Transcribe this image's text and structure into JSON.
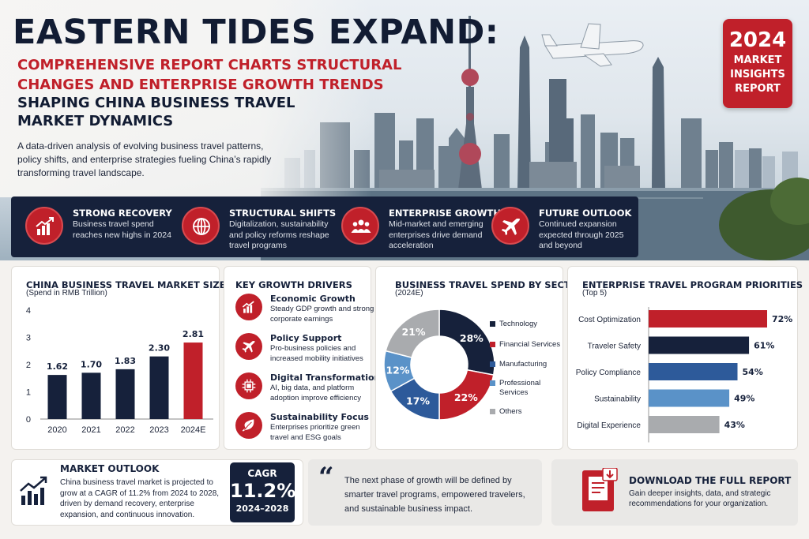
{
  "hero": {
    "title": "EASTERN TIDES EXPAND:",
    "subtitle": "COMPREHENSIVE REPORT CHARTS STRUCTURAL CHANGES AND ENTERPRISE GROWTH TRENDS",
    "subtitle2": "SHAPING CHINA BUSINESS TRAVEL MARKET DYNAMICS",
    "intro": "A data-driven analysis of evolving business travel patterns, policy shifts, and enterprise strategies fueling China’s rapidly transforming travel landscape.",
    "badge": {
      "year": "2024",
      "line1": "MARKET",
      "line2": "INSIGHTS",
      "line3": "REPORT"
    }
  },
  "highlights": [
    {
      "icon": "growth-chart-icon",
      "title": "STRONG RECOVERY",
      "text": "Business travel spend reaches new highs in 2024"
    },
    {
      "icon": "globe-icon",
      "title": "STRUCTURAL SHIFTS",
      "text": "Digitalization, sustainability and policy reforms reshape travel programs"
    },
    {
      "icon": "people-icon",
      "title": "ENTERPRISE GROWTH",
      "text": "Mid-market and emerging enterprises drive demand acceleration"
    },
    {
      "icon": "airplane-icon",
      "title": "FUTURE OUTLOOK",
      "text": "Continued expansion expected through 2025 and beyond"
    }
  ],
  "drivers": {
    "title": "KEY GROWTH DRIVERS",
    "items": [
      {
        "icon": "growth-chart-icon",
        "title": "Economic Growth",
        "text": "Steady GDP growth and strong corporate earnings"
      },
      {
        "icon": "airplane-icon",
        "title": "Policy Support",
        "text": "Pro-business policies and increased mobility initiatives"
      },
      {
        "icon": "chip-icon",
        "title": "Digital Transformation",
        "text": "AI, big data, and platform adoption improve efficiency"
      },
      {
        "icon": "leaf-icon",
        "title": "Sustainability Focus",
        "text": "Enterprises prioritize green travel and ESG goals"
      }
    ]
  },
  "colors": {
    "navy": "#16213b",
    "red": "#c0202a",
    "blue": "#2d5a9a",
    "lightblue": "#5a92c8",
    "gray": "#a9abae"
  },
  "chart_data": [
    {
      "type": "bar",
      "title": "CHINA BUSINESS TRAVEL MARKET SIZE",
      "subtitle": "(Spend in RMB Trillion)",
      "categories": [
        "2020",
        "2021",
        "2022",
        "2023",
        "2024E"
      ],
      "values": [
        1.62,
        1.7,
        1.83,
        2.3,
        2.81
      ],
      "value_labels": [
        "1.62",
        "1.70",
        "1.83",
        "2.30",
        "2.81"
      ],
      "yticks": [
        "0",
        "1",
        "2",
        "3",
        "4"
      ],
      "ylim": [
        0,
        4
      ],
      "highlight": "2024E"
    },
    {
      "type": "pie",
      "title": "BUSINESS TRAVEL SPEND BY SECTOR",
      "subtitle": "(2024E)",
      "slices": [
        {
          "label": "Technology",
          "value": 28,
          "text": "28%",
          "color": "#16213b"
        },
        {
          "label": "Financial Services",
          "value": 22,
          "text": "22%",
          "color": "#c0202a"
        },
        {
          "label": "Manufacturing",
          "value": 17,
          "text": "17%",
          "color": "#2d5a9a"
        },
        {
          "label": "Professional Services",
          "value": 12,
          "text": "12%",
          "color": "#5a92c8"
        },
        {
          "label": "Others",
          "value": 21,
          "text": "21%",
          "color": "#a9abae"
        }
      ],
      "legend_labels": [
        "Technology",
        "Financial Services",
        "Manufacturing",
        "Professional",
        "Services",
        "Others"
      ]
    },
    {
      "type": "bar",
      "title": "ENTERPRISE TRAVEL PROGRAM PRIORITIES",
      "subtitle": "(Top 5)",
      "categories": [
        "Cost Optimization",
        "Traveler Safety",
        "Policy Compliance",
        "Sustainability",
        "Digital Experience"
      ],
      "values": [
        72,
        61,
        54,
        49,
        43
      ],
      "value_labels": [
        "72%",
        "61%",
        "54%",
        "49%",
        "43%"
      ],
      "colors": [
        "#c0202a",
        "#16213b",
        "#2d5a9a",
        "#5a92c8",
        "#a9abae"
      ],
      "xlim": [
        0,
        100
      ]
    }
  ],
  "outlook": {
    "title": "MARKET OUTLOOK",
    "text": "China business travel market is projected to grow at a CAGR of 11.2% from 2024 to 2028, driven by demand recovery, enterprise expansion, and continuous innovation.",
    "cagr_label": "CAGR",
    "cagr_value": "11.2%",
    "cagr_range": "2024–2028"
  },
  "quote": {
    "mark": "“",
    "text": "The next phase of growth will be defined by smarter travel programs, empowered travelers, and sustainable business impact."
  },
  "download": {
    "title": "DOWNLOAD THE FULL REPORT",
    "text": "Gain deeper insights, data, and strategic recommendations for your organization."
  }
}
